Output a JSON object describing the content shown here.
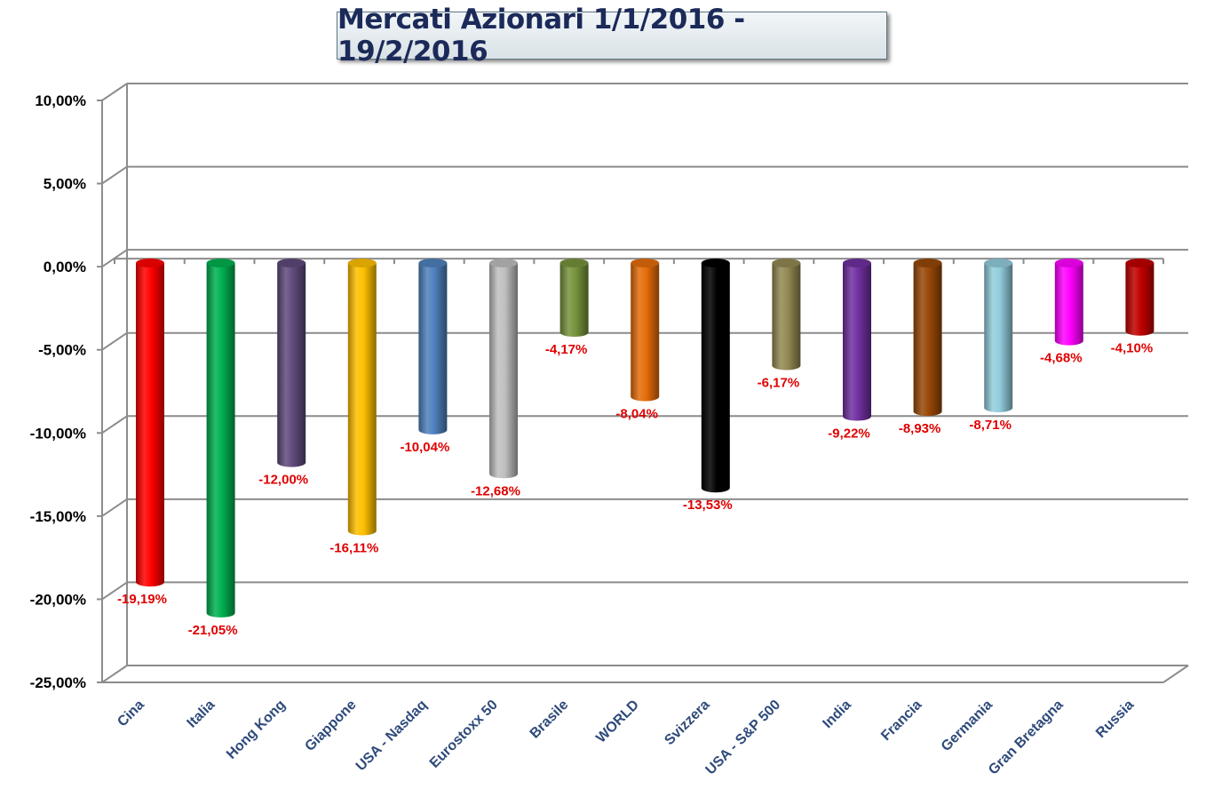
{
  "chart_data": {
    "type": "bar",
    "title": "Mercati Azionari 1/1/2016 - 19/2/2016",
    "xlabel": "",
    "ylabel": "",
    "ylim": [
      -25,
      10
    ],
    "yticks": [
      10,
      5,
      0,
      -5,
      -10,
      -15,
      -20,
      -25
    ],
    "ytick_labels": [
      "10,00%",
      "5,00%",
      "0,00%",
      "-5,00%",
      "-10,00%",
      "-15,00%",
      "-20,00%",
      "-25,00%"
    ],
    "grid": true,
    "legend": "none",
    "categories": [
      "Cina",
      "Italia",
      "Hong Kong",
      "Giappone",
      "USA - Nasdaq",
      "Eurostoxx 50",
      "Brasile",
      "WORLD",
      "Svizzera",
      "USA - S&P 500",
      "India",
      "Francia",
      "Germania",
      "Gran Bretagna",
      "Russia"
    ],
    "values": [
      -19.19,
      -21.05,
      -12.0,
      -16.11,
      -10.04,
      -12.68,
      -4.17,
      -8.04,
      -13.53,
      -6.17,
      -9.22,
      -8.93,
      -8.71,
      -4.68,
      -4.1
    ],
    "data_labels": [
      "-19,19%",
      "-21,05%",
      "-12,00%",
      "-16,11%",
      "-10,04%",
      "-12,68%",
      "-4,17%",
      "-8,04%",
      "-13,53%",
      "-6,17%",
      "-9,22%",
      "-8,93%",
      "-8,71%",
      "-4,68%",
      "-4,10%"
    ],
    "colors": [
      "#ff0000",
      "#00b050",
      "#604a7b",
      "#ffc000",
      "#4f81bd",
      "#bfbfbf",
      "#77933c",
      "#e46c0a",
      "#000000",
      "#938953",
      "#7030a0",
      "#984807",
      "#92cddc",
      "#ff00ff",
      "#c00000"
    ],
    "data_label_color": "#e00000"
  }
}
